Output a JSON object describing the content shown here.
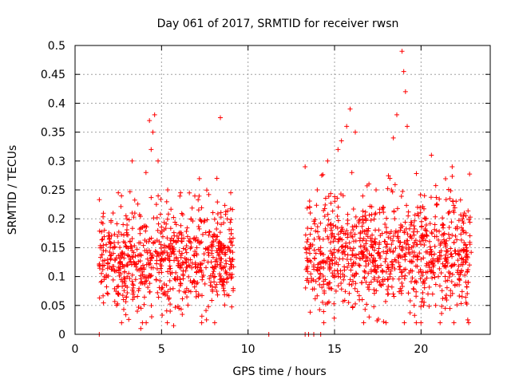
{
  "chart_data": {
    "type": "scatter",
    "title": "Day 061 of 2017, SRMTID for receiver rwsn",
    "xlabel": "GPS time / hours",
    "ylabel": "SRMTID / TECUs",
    "xlim": [
      0,
      24
    ],
    "ylim": [
      0,
      0.5
    ],
    "grid": true,
    "marker": "plus",
    "series_color": "#ff0000",
    "x_ticks": [
      {
        "value": 0,
        "label": "0"
      },
      {
        "value": 5,
        "label": "5"
      },
      {
        "value": 10,
        "label": "10"
      },
      {
        "value": 15,
        "label": "15"
      },
      {
        "value": 20,
        "label": "20"
      }
    ],
    "y_ticks": [
      {
        "value": 0,
        "label": "0"
      },
      {
        "value": 0.05,
        "label": "0.05"
      },
      {
        "value": 0.1,
        "label": "0.1"
      },
      {
        "value": 0.15,
        "label": "0.15"
      },
      {
        "value": 0.2,
        "label": "0.2"
      },
      {
        "value": 0.25,
        "label": "0.25"
      },
      {
        "value": 0.3,
        "label": "0.3"
      },
      {
        "value": 0.35,
        "label": "0.35"
      },
      {
        "value": 0.4,
        "label": "0.4"
      },
      {
        "value": 0.45,
        "label": "0.45"
      },
      {
        "value": 0.5,
        "label": "0.5"
      }
    ],
    "segments": [
      {
        "x_start": 1.4,
        "x_end": 9.2,
        "median": 0.13,
        "spread": 0.045
      },
      {
        "x_start": 13.3,
        "x_end": 22.9,
        "median": 0.14,
        "spread": 0.05
      }
    ],
    "points": [
      {
        "x": 1.4,
        "y": 0.12
      },
      {
        "x": 1.5,
        "y": 0.09
      },
      {
        "x": 1.7,
        "y": 0.18
      },
      {
        "x": 1.9,
        "y": 0.07
      },
      {
        "x": 2.0,
        "y": 0.16
      },
      {
        "x": 2.2,
        "y": 0.21
      },
      {
        "x": 2.4,
        "y": 0.11
      },
      {
        "x": 2.5,
        "y": 0.245
      },
      {
        "x": 2.7,
        "y": 0.14
      },
      {
        "x": 2.8,
        "y": 0.06
      },
      {
        "x": 3.0,
        "y": 0.2
      },
      {
        "x": 3.2,
        "y": 0.13
      },
      {
        "x": 3.3,
        "y": 0.3
      },
      {
        "x": 3.5,
        "y": 0.095
      },
      {
        "x": 3.6,
        "y": 0.04
      },
      {
        "x": 3.8,
        "y": 0.01
      },
      {
        "x": 3.9,
        "y": 0.185
      },
      {
        "x": 4.1,
        "y": 0.28
      },
      {
        "x": 4.3,
        "y": 0.37
      },
      {
        "x": 4.4,
        "y": 0.32
      },
      {
        "x": 4.5,
        "y": 0.35
      },
      {
        "x": 4.6,
        "y": 0.38
      },
      {
        "x": 4.7,
        "y": 0.225
      },
      {
        "x": 4.8,
        "y": 0.3
      },
      {
        "x": 5.0,
        "y": 0.08
      },
      {
        "x": 5.2,
        "y": 0.13
      },
      {
        "x": 5.5,
        "y": 0.04
      },
      {
        "x": 5.7,
        "y": 0.015
      },
      {
        "x": 5.9,
        "y": 0.17
      },
      {
        "x": 6.1,
        "y": 0.245
      },
      {
        "x": 6.4,
        "y": 0.11
      },
      {
        "x": 6.7,
        "y": 0.2
      },
      {
        "x": 7.0,
        "y": 0.065
      },
      {
        "x": 7.3,
        "y": 0.16
      },
      {
        "x": 7.6,
        "y": 0.025
      },
      {
        "x": 7.9,
        "y": 0.14
      },
      {
        "x": 8.2,
        "y": 0.27
      },
      {
        "x": 8.4,
        "y": 0.375
      },
      {
        "x": 8.6,
        "y": 0.09
      },
      {
        "x": 8.8,
        "y": 0.2
      },
      {
        "x": 9.0,
        "y": 0.245
      },
      {
        "x": 9.1,
        "y": 0.13
      },
      {
        "x": 13.3,
        "y": 0.29
      },
      {
        "x": 13.4,
        "y": 0.16
      },
      {
        "x": 13.5,
        "y": 0.09
      },
      {
        "x": 13.6,
        "y": 0.21
      },
      {
        "x": 13.8,
        "y": 0.12
      },
      {
        "x": 14.0,
        "y": 0.25
      },
      {
        "x": 14.2,
        "y": 0.15
      },
      {
        "x": 14.4,
        "y": 0.075
      },
      {
        "x": 14.6,
        "y": 0.3
      },
      {
        "x": 14.8,
        "y": 0.18
      },
      {
        "x": 15.0,
        "y": 0.11
      },
      {
        "x": 15.2,
        "y": 0.32
      },
      {
        "x": 15.4,
        "y": 0.335
      },
      {
        "x": 15.5,
        "y": 0.24
      },
      {
        "x": 15.7,
        "y": 0.36
      },
      {
        "x": 15.9,
        "y": 0.39
      },
      {
        "x": 16.0,
        "y": 0.28
      },
      {
        "x": 16.2,
        "y": 0.35
      },
      {
        "x": 16.4,
        "y": 0.12
      },
      {
        "x": 16.6,
        "y": 0.06
      },
      {
        "x": 16.8,
        "y": 0.2
      },
      {
        "x": 17.0,
        "y": 0.03
      },
      {
        "x": 17.2,
        "y": 0.15
      },
      {
        "x": 17.4,
        "y": 0.25
      },
      {
        "x": 17.6,
        "y": 0.09
      },
      {
        "x": 17.8,
        "y": 0.22
      },
      {
        "x": 18.0,
        "y": 0.14
      },
      {
        "x": 18.2,
        "y": 0.27
      },
      {
        "x": 18.4,
        "y": 0.34
      },
      {
        "x": 18.6,
        "y": 0.38
      },
      {
        "x": 18.8,
        "y": 0.18
      },
      {
        "x": 18.9,
        "y": 0.49
      },
      {
        "x": 19.0,
        "y": 0.455
      },
      {
        "x": 19.1,
        "y": 0.42
      },
      {
        "x": 19.2,
        "y": 0.36
      },
      {
        "x": 19.4,
        "y": 0.11
      },
      {
        "x": 19.6,
        "y": 0.05
      },
      {
        "x": 19.8,
        "y": 0.22
      },
      {
        "x": 20.0,
        "y": 0.13
      },
      {
        "x": 20.2,
        "y": 0.24
      },
      {
        "x": 20.4,
        "y": 0.07
      },
      {
        "x": 20.6,
        "y": 0.31
      },
      {
        "x": 20.8,
        "y": 0.19
      },
      {
        "x": 21.0,
        "y": 0.1
      },
      {
        "x": 21.2,
        "y": 0.16
      },
      {
        "x": 21.4,
        "y": 0.045
      },
      {
        "x": 21.6,
        "y": 0.21
      },
      {
        "x": 21.8,
        "y": 0.29
      },
      {
        "x": 22.0,
        "y": 0.14
      },
      {
        "x": 22.2,
        "y": 0.095
      },
      {
        "x": 22.4,
        "y": 0.18
      },
      {
        "x": 22.6,
        "y": 0.055
      },
      {
        "x": 22.7,
        "y": 0.025
      },
      {
        "x": 22.8,
        "y": 0.12
      },
      {
        "x": 1.4,
        "y": 0.0
      },
      {
        "x": 11.2,
        "y": 0.0
      },
      {
        "x": 13.3,
        "y": 0.0
      },
      {
        "x": 13.5,
        "y": 0.0
      },
      {
        "x": 13.8,
        "y": 0.0
      },
      {
        "x": 14.2,
        "y": 0.0
      }
    ]
  }
}
